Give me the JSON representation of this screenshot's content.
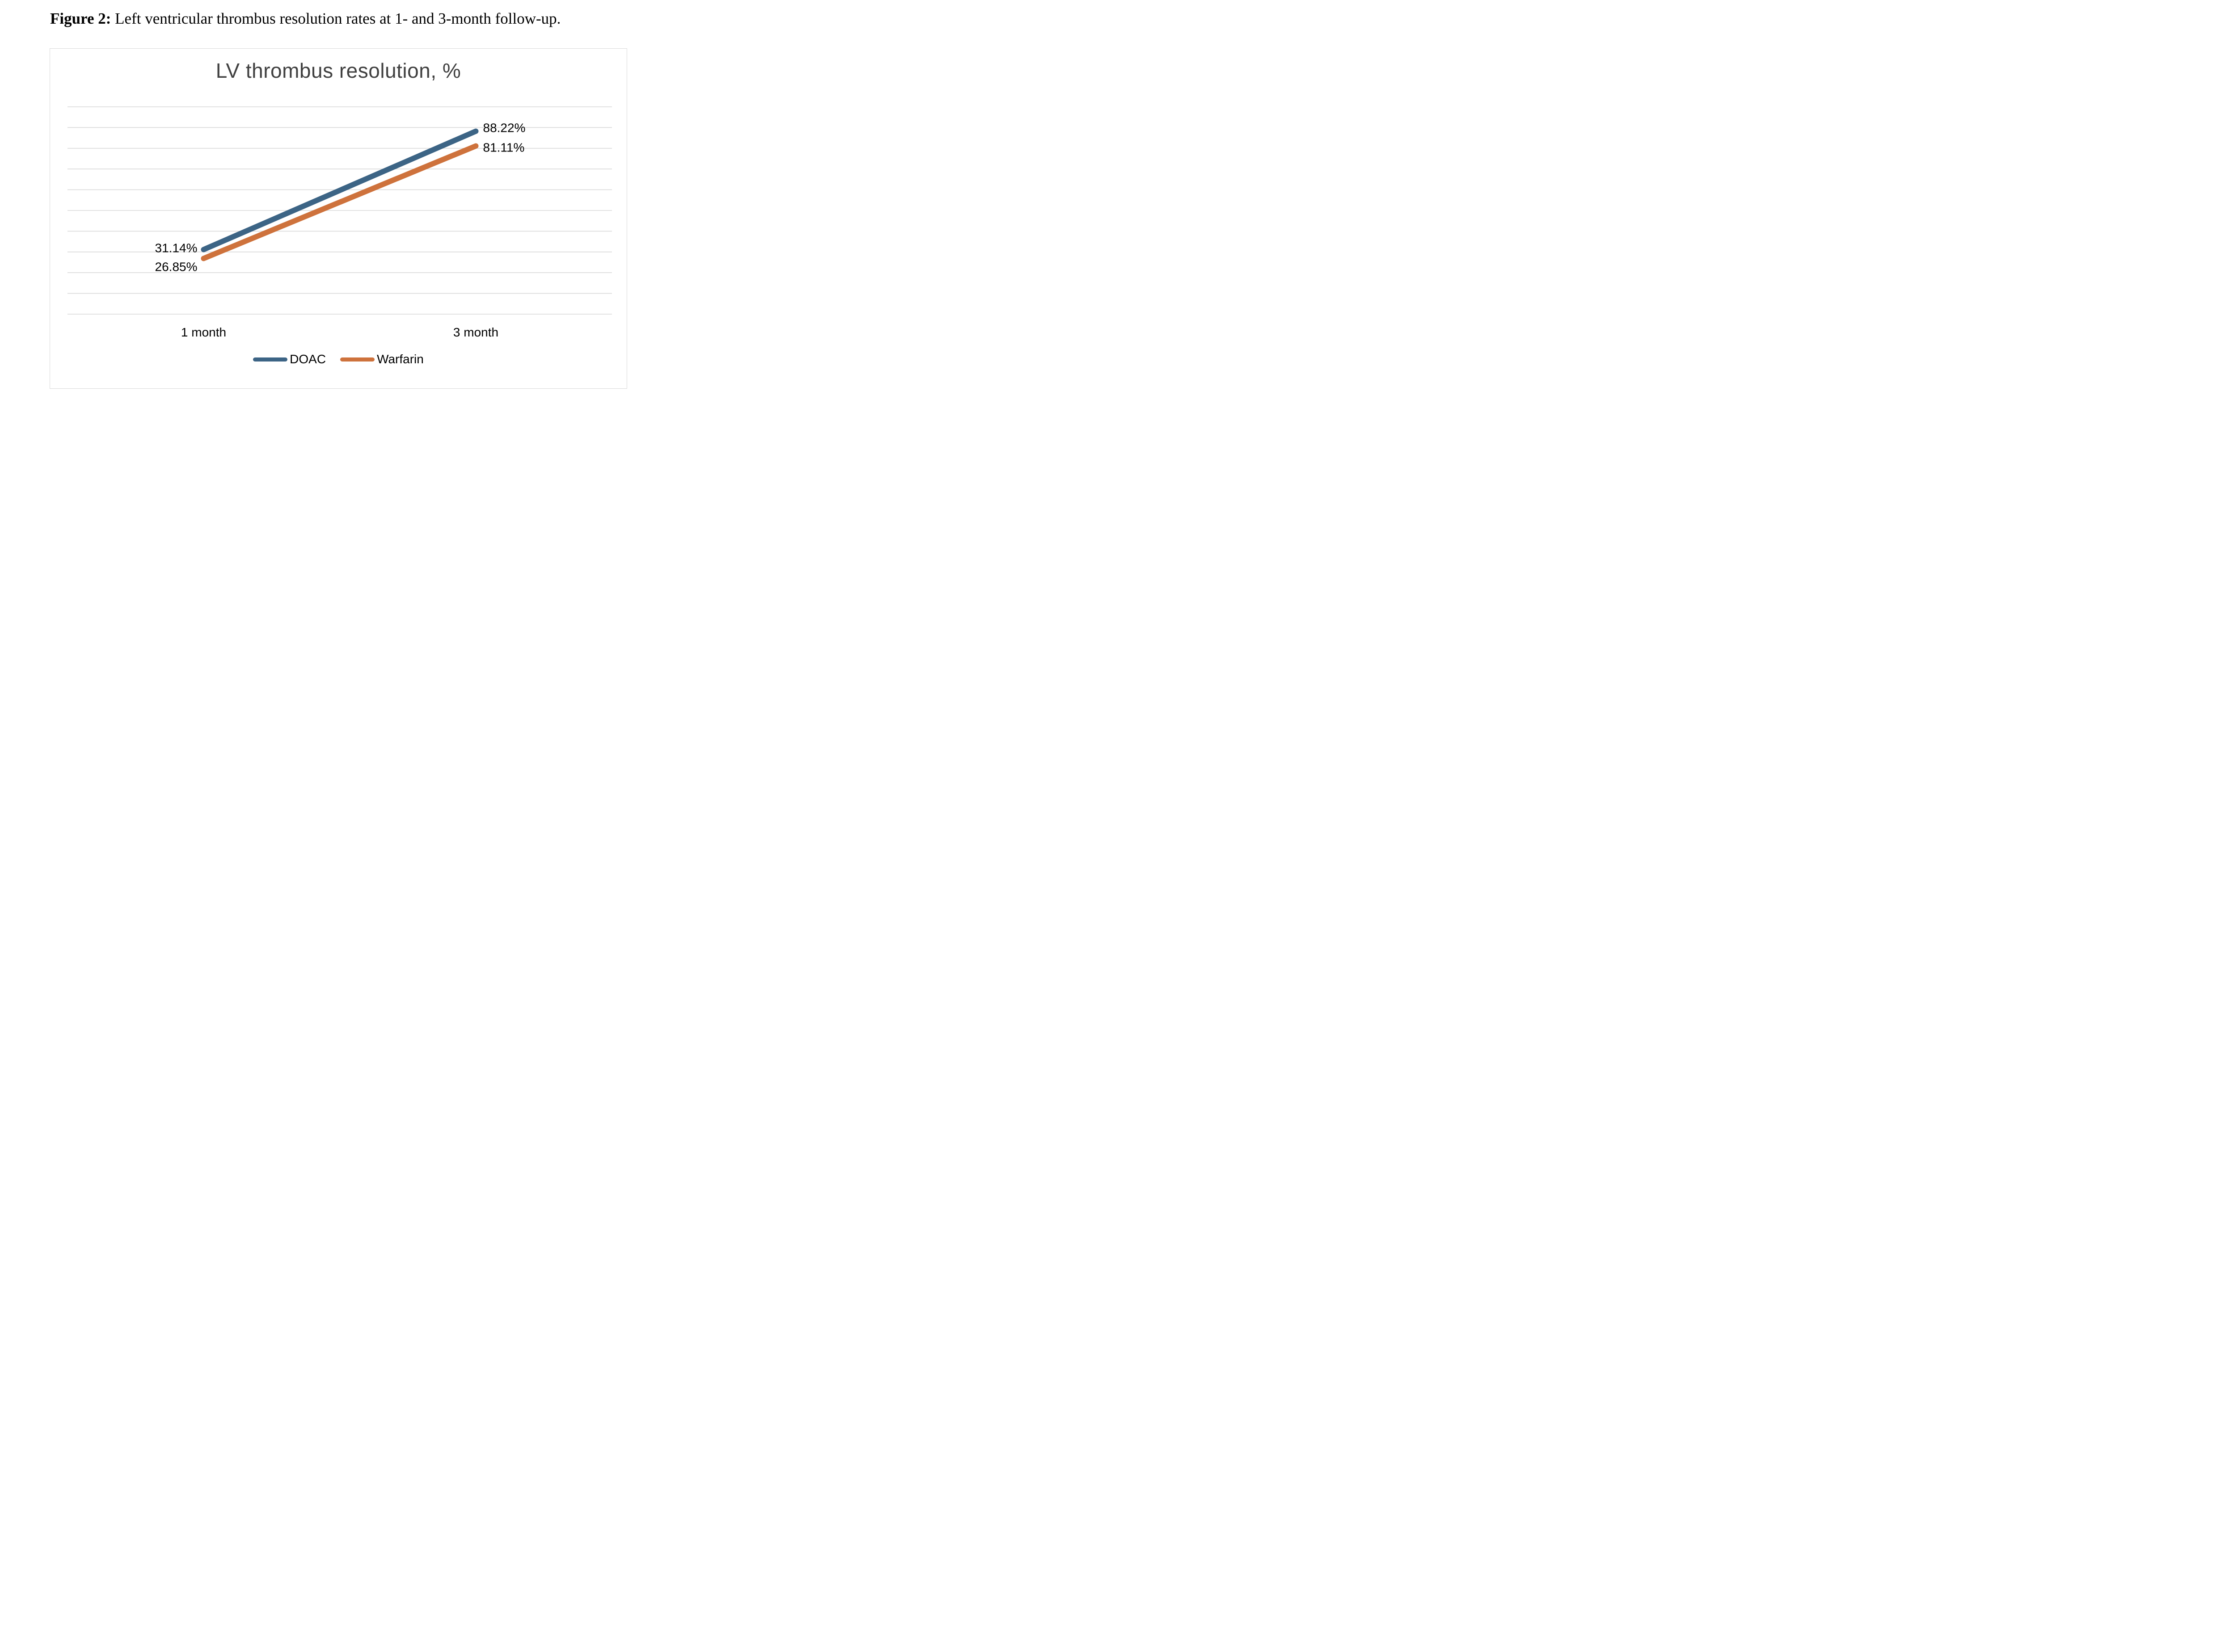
{
  "figure_caption": {
    "label": "Figure 2:",
    "text": " Left ventricular thrombus resolution rates at 1- and 3-month follow-up."
  },
  "chart_data": {
    "type": "line",
    "title": "LV thrombus resolution, %",
    "title_color": "#404040",
    "categories": [
      "1 month",
      "3 month"
    ],
    "series": [
      {
        "name": "DOAC",
        "color": "#3C6485",
        "values": [
          31.14,
          88.22
        ],
        "data_labels": [
          "31.14%",
          "88.22%"
        ]
      },
      {
        "name": "Warfarin",
        "color": "#CE723C",
        "values": [
          26.85,
          81.11
        ],
        "data_labels": [
          "26.85%",
          "81.11%"
        ]
      }
    ],
    "ylim": [
      0,
      100
    ],
    "y_gridline_step": 10,
    "grid": true,
    "y_tick_labels_visible": false,
    "legend_position": "bottom",
    "gridline_color": "#D9D9D9",
    "plot_border_color": "#D9D9D9",
    "text_color": "#000000"
  }
}
